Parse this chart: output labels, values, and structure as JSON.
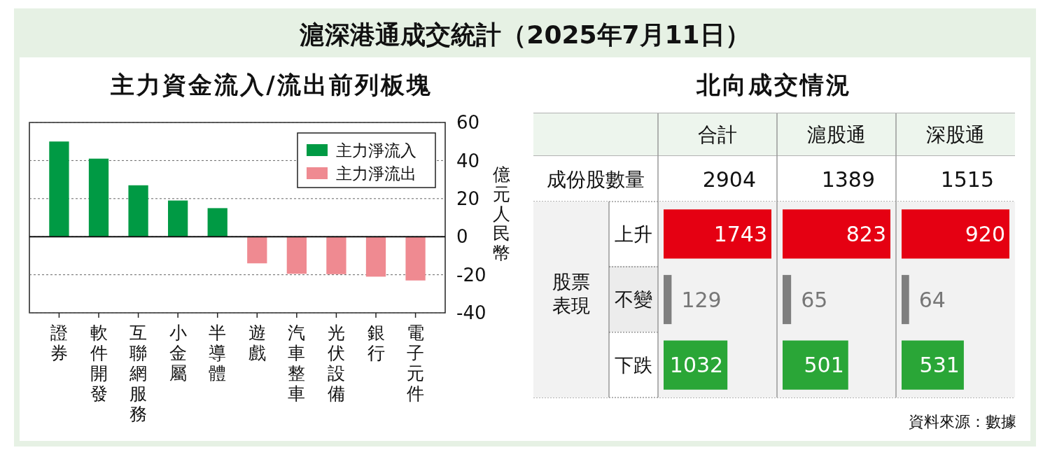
{
  "chart_data": [
    {
      "type": "bar",
      "title": "滬深港通成交統計（2025年7月11日）",
      "subtitle": "主力資金流入/流出前列板塊",
      "categories": [
        "證券",
        "軟件開發",
        "互聯網服務",
        "小金屬",
        "半導體",
        "遊戲",
        "汽車整車",
        "光伏設備",
        "銀行",
        "電子元件"
      ],
      "series": [
        {
          "name": "主力淨流入",
          "color": "#009a44",
          "values": [
            50,
            41,
            27,
            19,
            15,
            null,
            null,
            null,
            null,
            null
          ]
        },
        {
          "name": "主力淨流出",
          "color": "#ef8a91",
          "values": [
            null,
            null,
            null,
            null,
            null,
            -14,
            -19.5,
            -19.7,
            -21,
            -23
          ]
        }
      ],
      "ylabel": "億元人民幣",
      "ylim": [
        -40,
        60
      ],
      "yticks": [
        -40,
        -20,
        0,
        20,
        40,
        60
      ],
      "grid": "y",
      "legend": "top right"
    },
    {
      "type": "bar",
      "orientation": "horizontal",
      "title": "合計",
      "subtitle": "北向成交情況",
      "ylabel": "股票表現",
      "categories": [
        "上升",
        "不變",
        "下跌"
      ],
      "values": [
        1743,
        129,
        1032
      ],
      "colors": [
        "#e50012",
        "#7f7f7f",
        "#2aa637"
      ],
      "data_labels": true,
      "tick_labels": "y",
      "annotations": [
        "2904",
        "成份股數量"
      ]
    },
    {
      "type": "bar",
      "orientation": "horizontal",
      "title": "滬股通",
      "categories": [
        "上升",
        "不變",
        "下跌"
      ],
      "values": [
        823,
        65,
        501
      ],
      "colors": [
        "#e50012",
        "#7f7f7f",
        "#2aa637"
      ],
      "data_labels": true,
      "tick_labels": false,
      "annotations": [
        "1389"
      ]
    },
    {
      "type": "bar",
      "orientation": "horizontal",
      "title": "深股通",
      "categories": [
        "上升",
        "不變",
        "下跌"
      ],
      "values": [
        920,
        64,
        531
      ],
      "colors": [
        "#e50012",
        "#7f7f7f",
        "#2aa637"
      ],
      "data_labels": true,
      "tick_labels": false,
      "annotations": [
        "1515",
        "資料來源：數據"
      ]
    }
  ]
}
